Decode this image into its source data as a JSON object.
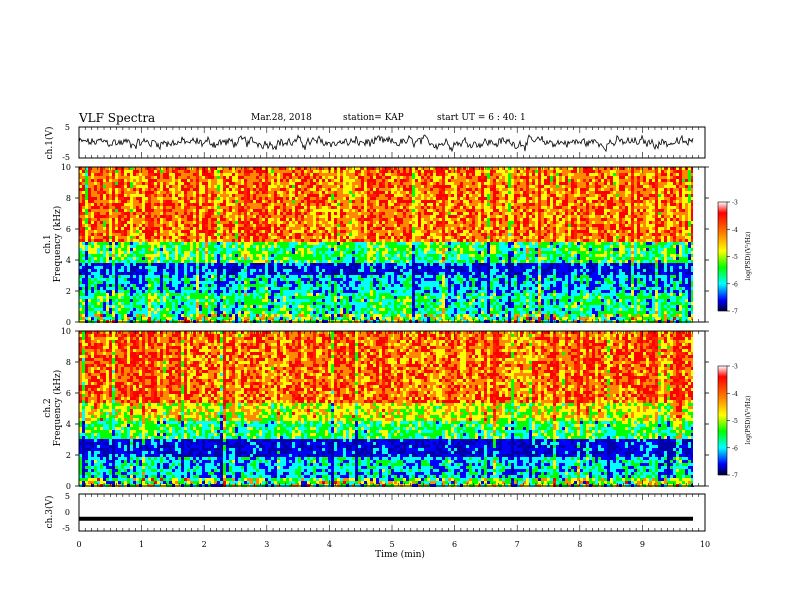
{
  "header": {
    "title": "VLF Spectra",
    "date": "Mar.28, 2018",
    "station": "station= KAP",
    "start": "start UT =  6 : 40: 1"
  },
  "colorbar": {
    "label": "log(PSD)(V²/Hz)",
    "ticks": [
      "-3",
      "-4",
      "-5",
      "-6",
      "-7"
    ],
    "stops": [
      "#ff0000",
      "#ff8800",
      "#ffff00",
      "#00ff00",
      "#00ffff",
      "#0000ff",
      "#000044"
    ]
  },
  "chart_data": [
    {
      "type": "line",
      "panel": "ch1-waveform",
      "ylabel": "ch.1(V)",
      "ylim": [
        -5,
        5
      ],
      "yticks": [
        "5",
        "-5"
      ],
      "xlim": [
        0,
        10
      ],
      "description_values": {
        "x": [
          0,
          10
        ],
        "y_range_approx": [
          -2.5,
          2.5
        ]
      }
    },
    {
      "type": "heatmap",
      "panel": "ch1-spectrogram",
      "ylabel": "ch.1\nFrequency (kHz)",
      "ylabel_lines": [
        "ch.1",
        "Frequency (kHz)"
      ],
      "ylim": [
        0,
        10
      ],
      "yticks": [
        "0",
        "2",
        "4",
        "6",
        "8",
        "10"
      ],
      "xlim": [
        0,
        10
      ],
      "z_range": [
        -7,
        -3
      ],
      "bands_kHz": [
        {
          "from": 0,
          "to": 0.6,
          "level": "mixed"
        },
        {
          "from": 0.6,
          "to": 2.0,
          "level": -5.2
        },
        {
          "from": 2.0,
          "to": 3.2,
          "level": -5.6
        },
        {
          "from": 3.2,
          "to": 3.9,
          "level": -6.2
        },
        {
          "from": 3.9,
          "to": 4.0,
          "level": -3.2
        },
        {
          "from": 4.0,
          "to": 5.2,
          "level": -5.0
        },
        {
          "from": 5.2,
          "to": 10,
          "level": -3.7
        }
      ]
    },
    {
      "type": "heatmap",
      "panel": "ch2-spectrogram",
      "ylabel": "ch.2\nFrequency (kHz)",
      "ylabel_lines": [
        "ch.2",
        "Frequency (kHz)"
      ],
      "ylim": [
        0,
        10
      ],
      "yticks": [
        "0",
        "2",
        "4",
        "6",
        "8",
        "10"
      ],
      "xlim": [
        0,
        10
      ],
      "z_range": [
        -7,
        -3
      ],
      "bands_kHz": [
        {
          "from": 0,
          "to": 0.6,
          "level": "mixed"
        },
        {
          "from": 0.6,
          "to": 2.0,
          "level": -5.5
        },
        {
          "from": 2.0,
          "to": 3.2,
          "level": -6.3
        },
        {
          "from": 3.2,
          "to": 4.2,
          "level": -5.0
        },
        {
          "from": 4.2,
          "to": 5.5,
          "level": -4.3
        },
        {
          "from": 5.5,
          "to": 10,
          "level": -3.6
        }
      ]
    },
    {
      "type": "line",
      "panel": "ch3-waveform",
      "ylabel": "ch.3(V)",
      "ylim": [
        -5,
        5
      ],
      "yticks": [
        "5",
        "0",
        "-5"
      ],
      "xlim": [
        0,
        10
      ],
      "xlabel": "Time (min)",
      "xticks": [
        "0",
        "1",
        "2",
        "3",
        "4",
        "5",
        "6",
        "7",
        "8",
        "9",
        "10"
      ],
      "values_note": "flat trace at approximately -1.7 V",
      "y_const": -1.7
    }
  ]
}
